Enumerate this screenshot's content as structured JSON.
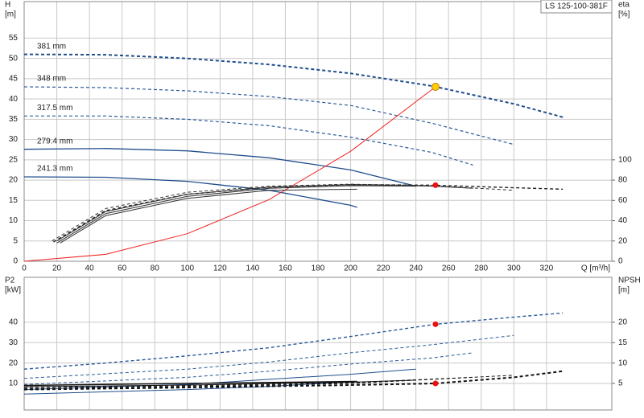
{
  "model": "LS 125-100-381F",
  "chart_data": [
    {
      "type": "line",
      "y_label": [
        "H",
        "[m]"
      ],
      "y2_label": [
        "eta",
        "[%]"
      ],
      "x_label": "Q [m³/h]",
      "xlim": [
        0,
        360
      ],
      "xticks": [
        0,
        20,
        40,
        60,
        80,
        100,
        120,
        140,
        160,
        180,
        200,
        220,
        240,
        260,
        280,
        300,
        320
      ],
      "ylim": [
        0,
        64
      ],
      "yticks": [
        0,
        5,
        10,
        15,
        20,
        25,
        30,
        35,
        40,
        45,
        50,
        55
      ],
      "y2lim": [
        0,
        256
      ],
      "y2ticks": [
        0,
        20,
        40,
        60,
        80,
        100
      ],
      "grid": true,
      "series": [
        {
          "name": "381 mm",
          "color": "#1f4e8c",
          "style": "dashed",
          "width": 2,
          "x": [
            0,
            50,
            100,
            150,
            200,
            250,
            300,
            330
          ],
          "values": [
            51,
            50.9,
            50,
            48.5,
            46.3,
            43.2,
            38.8,
            35.5
          ]
        },
        {
          "name": "348 mm",
          "color": "#2a5a98",
          "style": "dashed",
          "width": 1.2,
          "x": [
            0,
            50,
            100,
            150,
            200,
            250,
            300
          ],
          "values": [
            43,
            42.8,
            42,
            40.6,
            38.4,
            34,
            28.8
          ]
        },
        {
          "name": "317.5 mm",
          "color": "#2a5a98",
          "style": "dashed",
          "width": 1.2,
          "x": [
            0,
            50,
            100,
            150,
            200,
            250,
            275
          ],
          "values": [
            35.8,
            35.8,
            35,
            33.4,
            30.6,
            26.8,
            23.7
          ]
        },
        {
          "name": "279.4 mm",
          "color": "#1f4e8c",
          "style": "solid",
          "width": 1.3,
          "x": [
            0,
            50,
            100,
            150,
            200,
            240
          ],
          "values": [
            27.6,
            27.8,
            27.2,
            25.5,
            22.5,
            18.5
          ]
        },
        {
          "name": "241.3 mm",
          "color": "#1f4e8c",
          "style": "solid",
          "width": 1.3,
          "x": [
            0,
            50,
            100,
            150,
            200,
            204
          ],
          "values": [
            20.8,
            20.7,
            19.7,
            17.5,
            13.8,
            13.3
          ]
        },
        {
          "color": "#ee2222",
          "style": "solid",
          "width": 1,
          "x": [
            0,
            50,
            100,
            150,
            200,
            252
          ],
          "values": [
            0,
            1.7,
            6.8,
            15.2,
            27.1,
            43
          ]
        },
        {
          "axis": "y2",
          "color": "#222222",
          "style": "dashed",
          "width": 1.4,
          "x": [
            18,
            50,
            100,
            150,
            200,
            250,
            330
          ],
          "values": [
            19,
            50,
            66,
            73,
            75.5,
            75,
            71
          ]
        },
        {
          "axis": "y2",
          "color": "#333333",
          "style": "dashed",
          "width": 1,
          "x": [
            17,
            50,
            100,
            150,
            200,
            250,
            300
          ],
          "values": [
            20,
            52,
            68,
            74,
            76,
            74.5,
            70
          ]
        },
        {
          "axis": "y2",
          "color": "#333333",
          "style": "solid",
          "width": 1,
          "x": [
            20,
            50,
            100,
            150,
            200,
            250,
            275
          ],
          "values": [
            20,
            49,
            66,
            73,
            75.5,
            74,
            72
          ]
        },
        {
          "axis": "y2",
          "color": "#333333",
          "style": "solid",
          "width": 1,
          "x": [
            20,
            50,
            100,
            150,
            200,
            240
          ],
          "values": [
            18,
            47,
            64,
            72,
            74.5,
            74
          ]
        },
        {
          "axis": "y2",
          "color": "#333333",
          "style": "solid",
          "width": 1,
          "x": [
            22,
            50,
            100,
            150,
            204
          ],
          "values": [
            18,
            45,
            62,
            70,
            71
          ]
        }
      ],
      "markers": [
        {
          "x": 252,
          "y": 43,
          "color": "#ffcc00",
          "stroke": "#c08000",
          "r": 4.5
        },
        {
          "x": 252,
          "y": 75,
          "axis": "y2",
          "color": "#ee1111",
          "stroke": "#ee1111",
          "r": 3
        }
      ]
    },
    {
      "type": "line",
      "sharex": true,
      "y_label": [
        "P2",
        "[kW]"
      ],
      "y2_label": [
        "NPSH",
        "[m]"
      ],
      "xlim": [
        0,
        360
      ],
      "ylim": [
        -3,
        62
      ],
      "yticks": [
        10,
        20,
        30,
        40
      ],
      "y2lim": [
        -1.5,
        31
      ],
      "y2ticks": [
        5,
        10,
        15,
        20
      ],
      "grid": true,
      "series": [
        {
          "color": "#2a5a98",
          "style": "dashed",
          "width": 1.4,
          "x": [
            0,
            50,
            100,
            150,
            200,
            252,
            300,
            330
          ],
          "values": [
            17,
            20,
            23.5,
            27.5,
            33,
            39,
            42.5,
            44.5
          ]
        },
        {
          "color": "#2a5a98",
          "style": "dashed",
          "width": 1,
          "x": [
            0,
            100,
            150,
            200,
            250,
            300
          ],
          "values": [
            12.5,
            17,
            20.5,
            25,
            29,
            33.5
          ]
        },
        {
          "color": "#2a5a98",
          "style": "dashed",
          "width": 1,
          "x": [
            0,
            100,
            150,
            200,
            250,
            275
          ],
          "values": [
            9.5,
            13,
            16,
            19.5,
            22.5,
            25
          ]
        },
        {
          "color": "#1f4e8c",
          "style": "solid",
          "width": 1,
          "x": [
            0,
            100,
            150,
            200,
            240
          ],
          "values": [
            7,
            9.5,
            12,
            14.5,
            17
          ]
        },
        {
          "color": "#1f4e8c",
          "style": "solid",
          "width": 1,
          "x": [
            0,
            100,
            150,
            204
          ],
          "values": [
            4.8,
            7,
            8.5,
            11
          ]
        },
        {
          "axis": "y2",
          "color": "#111111",
          "style": "dashed",
          "width": 2,
          "x": [
            0,
            100,
            200,
            252,
            300,
            330
          ],
          "values": [
            3.5,
            4,
            4.6,
            5,
            6.5,
            8
          ]
        },
        {
          "axis": "y2",
          "color": "#111111",
          "style": "dashed",
          "width": 1,
          "x": [
            0,
            100,
            200,
            300
          ],
          "values": [
            3.7,
            4.2,
            5,
            7
          ]
        },
        {
          "axis": "y2",
          "color": "#111111",
          "style": "dashed",
          "width": 1,
          "x": [
            0,
            100,
            200,
            275
          ],
          "values": [
            4,
            4.4,
            5.2,
            6.5
          ]
        },
        {
          "axis": "y2",
          "color": "#111111",
          "style": "solid",
          "width": 1,
          "x": [
            0,
            100,
            200,
            240
          ],
          "values": [
            4.2,
            4.6,
            5.3,
            5.8
          ]
        },
        {
          "axis": "y2",
          "color": "#111111",
          "style": "solid",
          "width": 1.5,
          "x": [
            0,
            100,
            204
          ],
          "values": [
            4.5,
            5,
            5.5
          ]
        }
      ],
      "markers": [
        {
          "x": 252,
          "y": 39,
          "color": "#ee1111",
          "stroke": "#ee1111",
          "r": 3
        },
        {
          "x": 252,
          "y": 5,
          "axis": "y2",
          "color": "#ee1111",
          "stroke": "#ee1111",
          "r": 3
        }
      ]
    }
  ]
}
